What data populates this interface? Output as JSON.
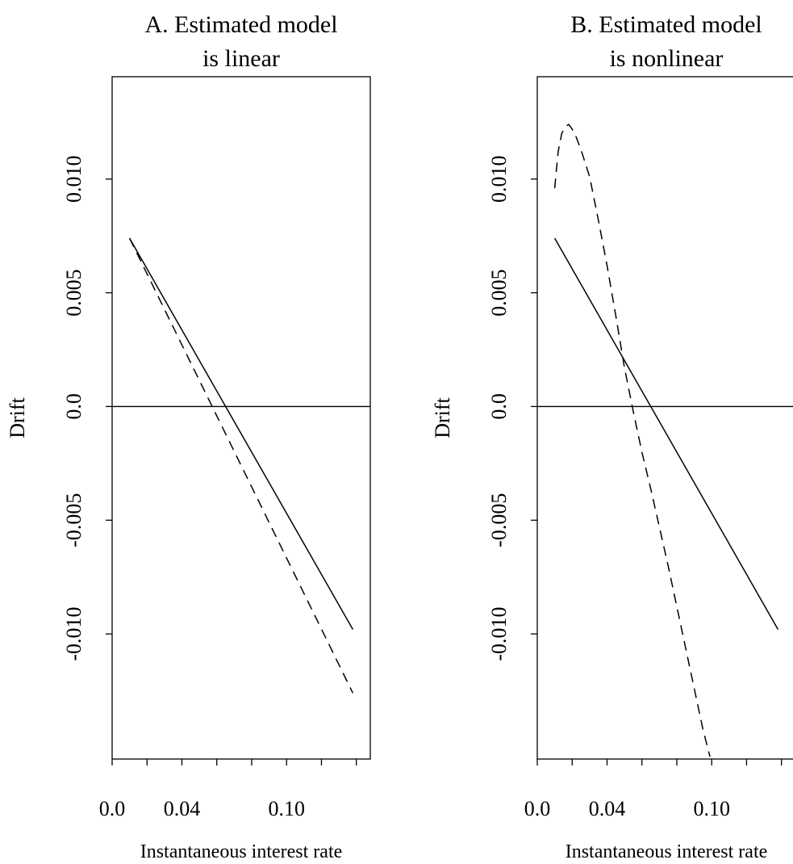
{
  "chart_data": [
    {
      "type": "line",
      "panel": "A",
      "title_lines": [
        "A.  Estimated model",
        "is linear"
      ],
      "xlabel": "Instantaneous interest rate",
      "ylabel": "Drift",
      "xlim": [
        0.0,
        0.148
      ],
      "ylim": [
        -0.0155,
        0.0145
      ],
      "x_ticks": [
        0.0,
        0.02,
        0.04,
        0.06,
        0.08,
        0.1,
        0.12,
        0.14
      ],
      "x_tick_labels": [
        {
          "value": 0.0,
          "label": "0.0"
        },
        {
          "value": 0.04,
          "label": "0.04"
        },
        {
          "value": 0.1,
          "label": "0.10"
        }
      ],
      "y_ticks": [
        {
          "value": 0.01,
          "label": "0.010"
        },
        {
          "value": 0.005,
          "label": "0.005"
        },
        {
          "value": 0.0,
          "label": "0.0"
        },
        {
          "value": -0.005,
          "label": "-0.005"
        },
        {
          "value": -0.01,
          "label": "-0.010"
        }
      ],
      "zero_line": true,
      "series": [
        {
          "style": "solid",
          "x": [
            0.01,
            0.138
          ],
          "y": [
            0.0074,
            -0.0098
          ]
        },
        {
          "style": "dashed",
          "x": [
            0.01,
            0.138
          ],
          "y": [
            0.0074,
            -0.0126
          ]
        }
      ]
    },
    {
      "type": "line",
      "panel": "B",
      "title_lines": [
        "B.  Estimated model",
        "is nonlinear"
      ],
      "xlabel": "Instantaneous interest rate",
      "ylabel": "Drift",
      "xlim": [
        0.0,
        0.148
      ],
      "ylim": [
        -0.0155,
        0.0145
      ],
      "x_ticks": [
        0.0,
        0.02,
        0.04,
        0.06,
        0.08,
        0.1,
        0.12,
        0.14
      ],
      "x_tick_labels": [
        {
          "value": 0.0,
          "label": "0.0"
        },
        {
          "value": 0.04,
          "label": "0.04"
        },
        {
          "value": 0.1,
          "label": "0.10"
        }
      ],
      "y_ticks": [
        {
          "value": 0.01,
          "label": "0.010"
        },
        {
          "value": 0.005,
          "label": "0.005"
        },
        {
          "value": 0.0,
          "label": "0.0"
        },
        {
          "value": -0.005,
          "label": "-0.005"
        },
        {
          "value": -0.01,
          "label": "-0.010"
        }
      ],
      "zero_line": true,
      "series": [
        {
          "style": "solid",
          "x": [
            0.01,
            0.138
          ],
          "y": [
            0.0074,
            -0.0098
          ]
        },
        {
          "style": "dashed",
          "x": [
            0.01,
            0.012,
            0.014,
            0.016,
            0.018,
            0.02,
            0.022,
            0.025,
            0.03,
            0.035,
            0.04,
            0.045,
            0.05,
            0.055,
            0.06,
            0.065,
            0.07,
            0.075,
            0.08,
            0.085,
            0.09,
            0.095,
            0.099
          ],
          "y": [
            0.0096,
            0.0112,
            0.012,
            0.0123,
            0.0124,
            0.0122,
            0.0119,
            0.0113,
            0.0101,
            0.0082,
            0.0062,
            0.004,
            0.0017,
            -0.0002,
            -0.002,
            -0.0036,
            -0.0053,
            -0.007,
            -0.0088,
            -0.0106,
            -0.0124,
            -0.0142,
            -0.0154
          ]
        }
      ]
    }
  ]
}
